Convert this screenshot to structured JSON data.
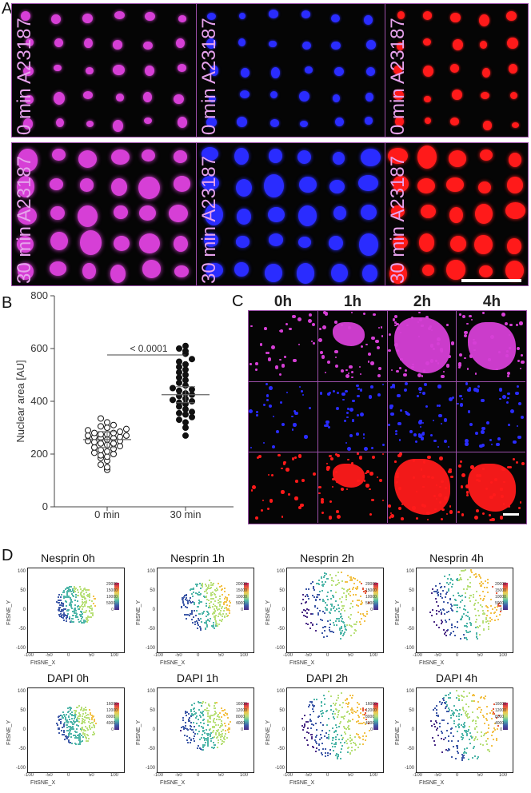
{
  "panels": {
    "a": "A",
    "b": "B",
    "c": "C",
    "d": "D"
  },
  "panel_a": {
    "row_top_label": "0 min A23187",
    "row_bottom_label": "30 min A23187"
  },
  "panel_c": {
    "columns": [
      "0h",
      "1h",
      "2h",
      "4h"
    ]
  },
  "chart_data": [
    {
      "type": "scatter",
      "panel": "B",
      "title": "",
      "xlabel": "",
      "ylabel": "Nuclear area [AU]",
      "categories": [
        "0 min",
        "30 min"
      ],
      "ylim": [
        0,
        800
      ],
      "yticks": [
        "0",
        "200",
        "400",
        "600",
        "800"
      ],
      "annotation": "< 0.0001",
      "series": [
        {
          "name": "0 min",
          "mean": 255,
          "values": [
            140,
            150,
            160,
            175,
            185,
            190,
            195,
            200,
            205,
            210,
            215,
            220,
            225,
            230,
            235,
            240,
            240,
            245,
            250,
            250,
            255,
            260,
            260,
            265,
            265,
            270,
            270,
            275,
            275,
            280,
            280,
            285,
            290,
            295,
            300,
            305,
            310,
            320,
            335
          ]
        },
        {
          "name": "30 min",
          "mean": 425,
          "values": [
            270,
            300,
            320,
            330,
            340,
            350,
            355,
            360,
            370,
            380,
            390,
            395,
            400,
            405,
            410,
            420,
            425,
            430,
            440,
            445,
            450,
            460,
            470,
            480,
            490,
            500,
            510,
            520,
            530,
            540,
            550,
            560,
            580,
            590,
            600,
            610
          ]
        }
      ]
    },
    {
      "type": "scatter",
      "panel": "D",
      "plots": [
        {
          "title": "Nesprin 0h",
          "xlabel": "FItSNE_X",
          "ylabel": "FItSNE_Y",
          "xticks": [
            "-100",
            "-50",
            "0",
            "50",
            "100"
          ],
          "yticks": [
            "100",
            "50",
            "0",
            "-50",
            "-100"
          ],
          "colorbar": [
            "20000",
            "15000",
            "10000",
            "5000",
            "0"
          ]
        },
        {
          "title": "Nesprin 1h",
          "xlabel": "FItSNE_X",
          "ylabel": "FItSNE_Y",
          "xticks": [
            "-100",
            "-50",
            "0",
            "50",
            "100"
          ],
          "yticks": [
            "100",
            "50",
            "0",
            "-50",
            "-100"
          ],
          "colorbar": [
            "20000",
            "15000",
            "10000",
            "5000",
            "0"
          ]
        },
        {
          "title": "Nesprin 2h",
          "xlabel": "FItSNE_X",
          "ylabel": "FItSNE_Y",
          "xticks": [
            "-100",
            "-50",
            "0",
            "50",
            "100"
          ],
          "yticks": [
            "100",
            "50",
            "0",
            "-50",
            "-100"
          ],
          "colorbar": [
            "20000",
            "15000",
            "10000",
            "5000",
            "0"
          ]
        },
        {
          "title": "Nesprin 4h",
          "xlabel": "FItSNE_X",
          "ylabel": "FItSNE_Y",
          "xticks": [
            "-100",
            "-50",
            "0",
            "50",
            "100"
          ],
          "yticks": [
            "100",
            "50",
            "0",
            "-50",
            "-100"
          ],
          "colorbar": [
            "20000",
            "15000",
            "10000",
            "5000",
            "0"
          ]
        },
        {
          "title": "DAPI 0h",
          "xlabel": "FItSNE_X",
          "ylabel": "FItSNE_Y",
          "xticks": [
            "-100",
            "-50",
            "0",
            "50",
            "100"
          ],
          "yticks": [
            "100",
            "50",
            "0",
            "-50",
            "-100"
          ],
          "colorbar": [
            "16000",
            "12000",
            "8000",
            "4000",
            "0"
          ]
        },
        {
          "title": "DAPI 1h",
          "xlabel": "FItSNE_X",
          "ylabel": "FItSNE_Y",
          "xticks": [
            "-100",
            "-50",
            "0",
            "50",
            "100"
          ],
          "yticks": [
            "100",
            "50",
            "0",
            "-50",
            "-100"
          ],
          "colorbar": [
            "16000",
            "12000",
            "8000",
            "4000",
            "0"
          ]
        },
        {
          "title": "DAPI 2h",
          "xlabel": "FItSNE_X",
          "ylabel": "FItSNE_Y",
          "xticks": [
            "-100",
            "-50",
            "0",
            "50",
            "100"
          ],
          "yticks": [
            "100",
            "50",
            "0",
            "-50",
            "-100"
          ],
          "colorbar": [
            "16000",
            "12000",
            "8000",
            "4000",
            "0"
          ]
        },
        {
          "title": "DAPI 4h",
          "xlabel": "FItSNE_X",
          "ylabel": "FItSNE_Y",
          "xticks": [
            "-100",
            "-50",
            "0",
            "50",
            "100"
          ],
          "yticks": [
            "100",
            "50",
            "0",
            "-50",
            "-100"
          ],
          "colorbar": [
            "16000",
            "12000",
            "8000",
            "4000",
            "0"
          ]
        }
      ]
    }
  ],
  "colors": {
    "merge": "#d63fd6",
    "dapi": "#2a2cff",
    "nesprin": "#ff1a1a",
    "frame": "#9b4fa8",
    "label": "#e6a2ec"
  }
}
